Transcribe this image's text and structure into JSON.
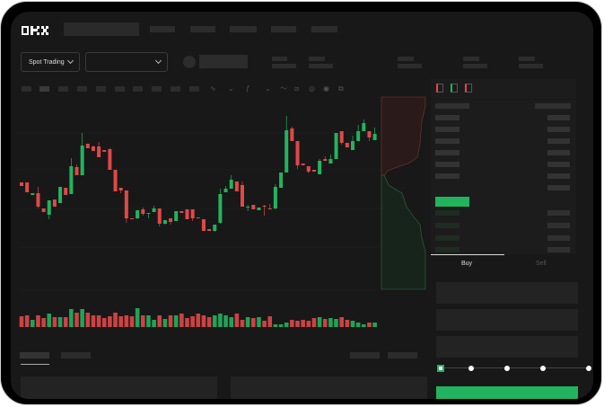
{
  "header": {
    "logo": "OKX",
    "nav_items": [
      "",
      "",
      "",
      "",
      ""
    ]
  },
  "toolbar": {
    "market_selector": "Spot Trading",
    "pair_selector": ""
  },
  "chart_toolbar_icons": [
    "wave-icon",
    "wave-down-icon",
    "indicator-icon",
    "chevron-down-icon",
    "line-icon",
    "ruler-icon",
    "snapshot-icon",
    "settings-icon",
    "fullscreen-icon"
  ],
  "orderbook": {
    "view_icons": [
      "book-both-icon",
      "book-bids-icon",
      "book-asks-icon"
    ]
  },
  "trade_panel": {
    "tabs": [
      "Buy",
      "Sell"
    ],
    "active_tab": "Buy",
    "slider_percent": 0
  },
  "colors": {
    "up": "#22b35e",
    "down": "#e04848",
    "background": "#181818"
  },
  "chart_data": {
    "type": "candlestick",
    "ohlc": [
      [
        97,
        97,
        93,
        93
      ],
      [
        97,
        97,
        86,
        86
      ],
      [
        83,
        85,
        83,
        85
      ],
      [
        85,
        92,
        68,
        70
      ],
      [
        68,
        68,
        64,
        64
      ],
      [
        61,
        77,
        56,
        77
      ],
      [
        78,
        78,
        70,
        70
      ],
      [
        74,
        92,
        74,
        92
      ],
      [
        91,
        91,
        83,
        83
      ],
      [
        84,
        124,
        84,
        115
      ],
      [
        114,
        117,
        105,
        105
      ],
      [
        105,
        152,
        105,
        138
      ],
      [
        140,
        140,
        135,
        135
      ],
      [
        137,
        138,
        132,
        132
      ],
      [
        137,
        142,
        125,
        125
      ],
      [
        133,
        133,
        131,
        131
      ],
      [
        134,
        135,
        111,
        111
      ],
      [
        111,
        111,
        87,
        87
      ],
      [
        91,
        91,
        85,
        88
      ],
      [
        88,
        88,
        52,
        57
      ],
      [
        57,
        57,
        56,
        56
      ],
      [
        57,
        66,
        56,
        66
      ],
      [
        67,
        69,
        60,
        62
      ],
      [
        62,
        63,
        57,
        63
      ],
      [
        64,
        71,
        64,
        68
      ],
      [
        68,
        68,
        48,
        51
      ],
      [
        51,
        55,
        50,
        55
      ],
      [
        57,
        57,
        50,
        53
      ],
      [
        54,
        65,
        54,
        65
      ],
      [
        65,
        65,
        63,
        63
      ],
      [
        67,
        67,
        56,
        56
      ],
      [
        67,
        67,
        54,
        57
      ],
      [
        58,
        58,
        57,
        57
      ],
      [
        56,
        56,
        43,
        43
      ],
      [
        45,
        45,
        43,
        43
      ],
      [
        43,
        50,
        42,
        50
      ],
      [
        52,
        90,
        51,
        84
      ],
      [
        86,
        93,
        86,
        90
      ],
      [
        90,
        105,
        90,
        100
      ],
      [
        98,
        98,
        87,
        87
      ],
      [
        94,
        98,
        70,
        70
      ],
      [
        69,
        72,
        65,
        70
      ],
      [
        72,
        72,
        67,
        67
      ],
      [
        66,
        69,
        66,
        69
      ],
      [
        71,
        72,
        60,
        70
      ],
      [
        68,
        73,
        67,
        67
      ],
      [
        68,
        95,
        67,
        92
      ],
      [
        91,
        108,
        91,
        108
      ],
      [
        108,
        171,
        108,
        155
      ],
      [
        157,
        159,
        143,
        143
      ],
      [
        143,
        143,
        112,
        116
      ],
      [
        118,
        118,
        116,
        116
      ],
      [
        115,
        115,
        107,
        109
      ],
      [
        111,
        111,
        109,
        109
      ],
      [
        106,
        123,
        106,
        121
      ],
      [
        123,
        126,
        121,
        121
      ],
      [
        118,
        128,
        118,
        123
      ],
      [
        123,
        152,
        123,
        152
      ],
      [
        154,
        154,
        139,
        141
      ],
      [
        141,
        141,
        136,
        136
      ],
      [
        133,
        149,
        133,
        143
      ],
      [
        143,
        161,
        143,
        154
      ],
      [
        154,
        167,
        154,
        163
      ],
      [
        154,
        154,
        143,
        147
      ],
      [
        144,
        158,
        144,
        151
      ]
    ],
    "volume": [
      12,
      13,
      8,
      13,
      10,
      15,
      11,
      11,
      11,
      20,
      16,
      20,
      16,
      13,
      13,
      10,
      12,
      16,
      12,
      13,
      12,
      21,
      13,
      13,
      8,
      13,
      9,
      13,
      13,
      15,
      10,
      12,
      15,
      13,
      11,
      13,
      15,
      13,
      11,
      15,
      8,
      11,
      10,
      11,
      7,
      12,
      3,
      3,
      5,
      8,
      7,
      8,
      7,
      10,
      11,
      9,
      10,
      9,
      11,
      8,
      7,
      5,
      3,
      5,
      5
    ]
  }
}
